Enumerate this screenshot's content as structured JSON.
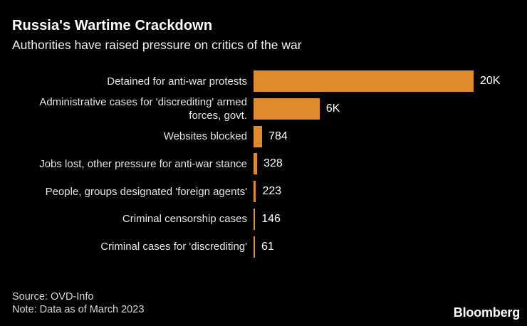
{
  "header": {
    "title": "Russia's Wartime Crackdown",
    "subtitle": "Authorities have raised pressure on critics of the war"
  },
  "chart_data": {
    "type": "bar",
    "orientation": "horizontal",
    "title": "Russia's Wartime Crackdown",
    "subtitle": "Authorities have raised pressure on critics of the war",
    "categories": [
      "Detained for anti-war protests",
      "Administrative cases for 'discrediting' armed forces, govt.",
      "Websites blocked",
      "Jobs lost, other pressure for anti-war stance",
      "People, groups designated 'foreign agents'",
      "Criminal censorship cases",
      "Criminal cases for 'discrediting'"
    ],
    "values": [
      20000,
      6000,
      784,
      328,
      223,
      146,
      61
    ],
    "value_labels": [
      "20K",
      "6K",
      "784",
      "328",
      "223",
      "146",
      "61"
    ],
    "xlim": [
      0,
      20000
    ],
    "grid": false,
    "legend": false,
    "bar_color": "#DF8B2B",
    "background_color": "#000000",
    "label_color": "#E6E6E6",
    "value_color": "#FFFFFF"
  },
  "footer": {
    "source": "Source: OVD-Info",
    "note": "Note: Data as of March 2023",
    "logo": "Bloomberg"
  }
}
